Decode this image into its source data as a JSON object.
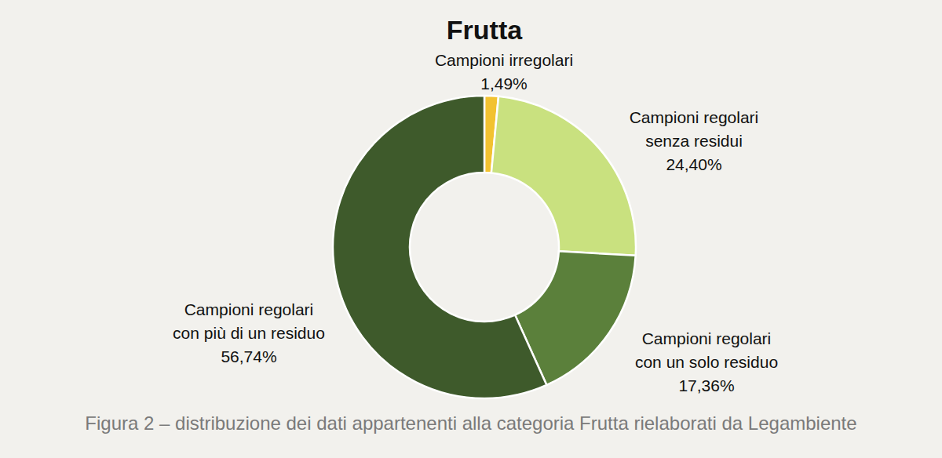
{
  "chart_data": {
    "type": "donut",
    "title": "Frutta",
    "caption": "Figura 2 – distribuzione dei dati appartenenti alla categoria Frutta rielaborati da Legambiente",
    "categories": [
      "Campioni irregolari",
      "Campioni regolari senza residui",
      "Campioni regolari con un solo residuo",
      "Campioni regolari con più di un residuo"
    ],
    "values": [
      1.49,
      24.4,
      17.36,
      56.74
    ],
    "value_labels": [
      "1,49%",
      "24,40%",
      "17,36%",
      "56,74%"
    ],
    "colors": [
      "#f2c230",
      "#c9e17f",
      "#5b803b",
      "#3e5a2b"
    ],
    "data_labels": true
  }
}
